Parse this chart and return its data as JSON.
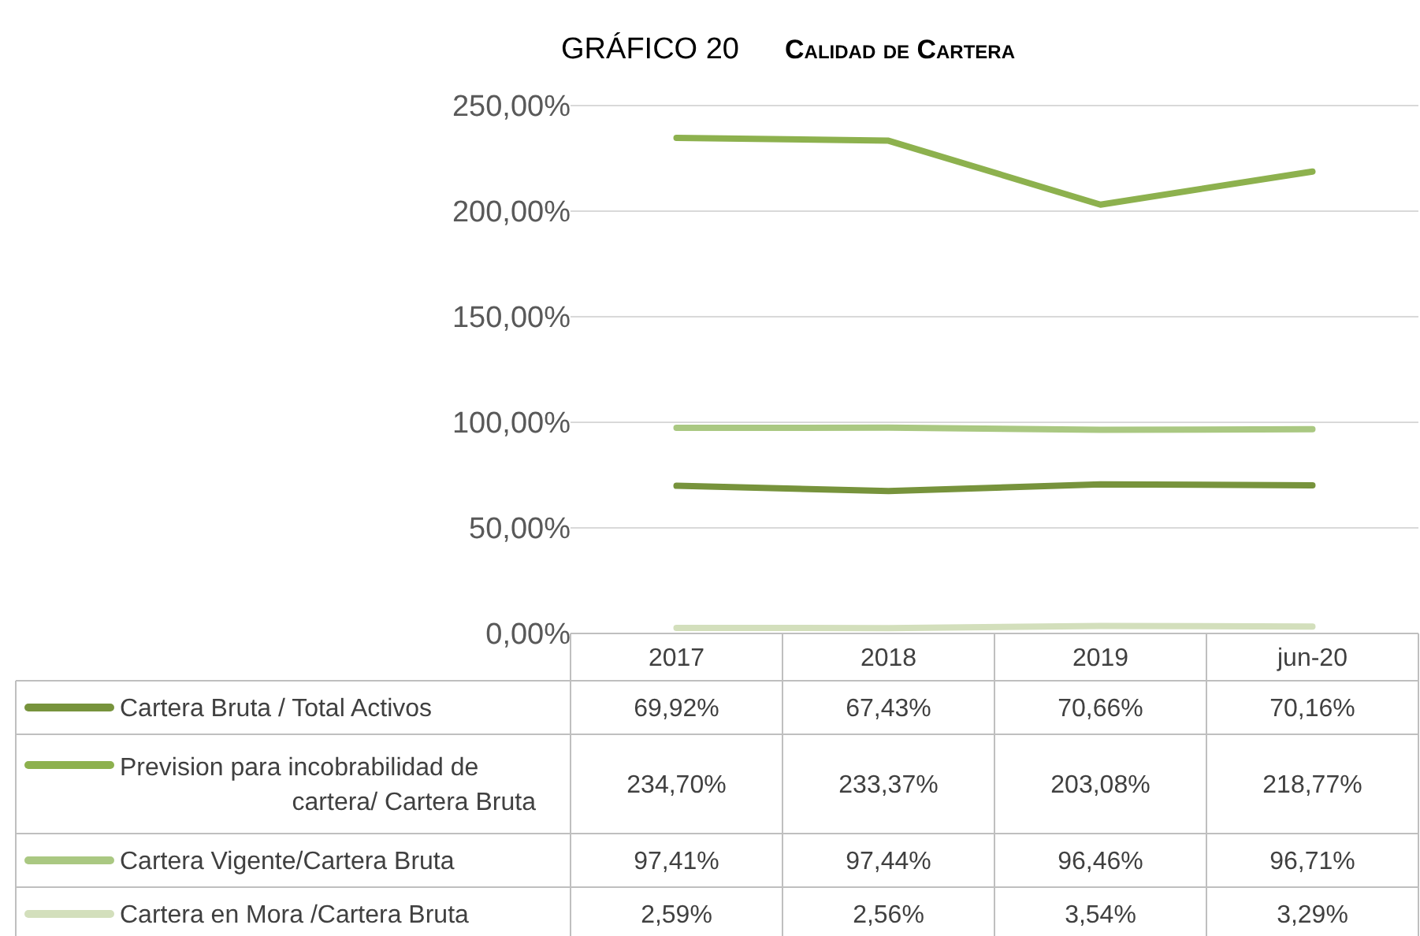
{
  "chart_data": {
    "type": "line",
    "title": "GRÁFICO 20",
    "subtitle": "Calidad de Cartera",
    "categories": [
      "2017",
      "2018",
      "2019",
      "jun-20"
    ],
    "series": [
      {
        "name": "Cartera Bruta / Total Activos",
        "color": "#77933c",
        "values": [
          69.92,
          67.43,
          70.66,
          70.16
        ],
        "value_labels": [
          "69,92%",
          "67,43%",
          "70,66%",
          "70,16%"
        ]
      },
      {
        "name": "Prevision para incobrabilidad de cartera/ Cartera Bruta",
        "color": "#8db14e",
        "values": [
          234.7,
          233.37,
          203.08,
          218.77
        ],
        "value_labels": [
          "234,70%",
          "233,37%",
          "203,08%",
          "218,77%"
        ]
      },
      {
        "name": "Cartera Vigente/Cartera Bruta",
        "color": "#aac882",
        "values": [
          97.41,
          97.44,
          96.46,
          96.71
        ],
        "value_labels": [
          "97,41%",
          "97,44%",
          "96,46%",
          "96,71%"
        ]
      },
      {
        "name": "Cartera en Mora /Cartera Bruta",
        "color": "#d3dfbc",
        "values": [
          2.59,
          2.56,
          3.54,
          3.29
        ],
        "value_labels": [
          "2,59%",
          "2,56%",
          "3,54%",
          "3,29%"
        ]
      }
    ],
    "ylim": [
      0,
      250
    ],
    "yticks": [
      {
        "value": 0,
        "label": "0,00%"
      },
      {
        "value": 50,
        "label": "50,00%"
      },
      {
        "value": 100,
        "label": "100,00%"
      },
      {
        "value": 150,
        "label": "150,00%"
      },
      {
        "value": 200,
        "label": "200,00%"
      },
      {
        "value": 250,
        "label": "250,00%"
      }
    ],
    "grid": "y",
    "legend": "bottom",
    "line_style": "solid",
    "marker": "none"
  }
}
